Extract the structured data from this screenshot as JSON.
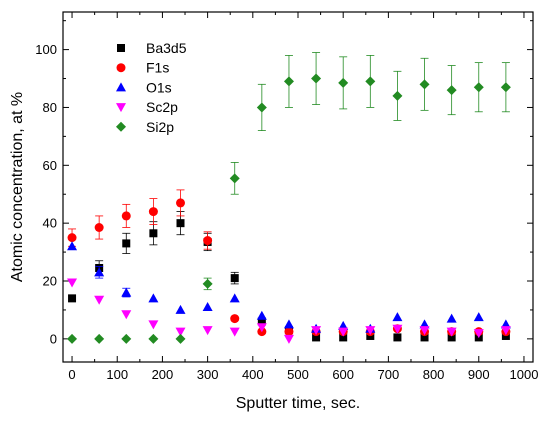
{
  "chart_data": {
    "type": "scatter",
    "xlabel": "Sputter time, sec.",
    "ylabel": "Atomic concentration, at %",
    "xlim": [
      -20,
      1020
    ],
    "ylim": [
      -8,
      113
    ],
    "xticks": [
      0,
      100,
      200,
      300,
      400,
      500,
      600,
      700,
      800,
      900,
      1000
    ],
    "yticks": [
      0,
      20,
      40,
      60,
      80,
      100
    ],
    "legend_position": "top-left",
    "series": [
      {
        "name": "Ba3d5",
        "marker": "square",
        "color": "#000000",
        "points": [
          {
            "x": 0,
            "y": 14,
            "err": 0
          },
          {
            "x": 60,
            "y": 24.5,
            "err": 2.5
          },
          {
            "x": 120,
            "y": 33,
            "err": 3.5
          },
          {
            "x": 180,
            "y": 36.5,
            "err": 4
          },
          {
            "x": 240,
            "y": 40,
            "err": 4
          },
          {
            "x": 300,
            "y": 33.5,
            "err": 3
          },
          {
            "x": 360,
            "y": 21,
            "err": 2
          },
          {
            "x": 420,
            "y": 6,
            "err": 0
          },
          {
            "x": 480,
            "y": 3,
            "err": 0
          },
          {
            "x": 540,
            "y": 0.5,
            "err": 0
          },
          {
            "x": 600,
            "y": 0.5,
            "err": 0
          },
          {
            "x": 660,
            "y": 1,
            "err": 0
          },
          {
            "x": 720,
            "y": 0.5,
            "err": 0
          },
          {
            "x": 780,
            "y": 0.5,
            "err": 0
          },
          {
            "x": 840,
            "y": 0.5,
            "err": 0
          },
          {
            "x": 900,
            "y": 0.5,
            "err": 0
          },
          {
            "x": 960,
            "y": 1,
            "err": 0
          }
        ]
      },
      {
        "name": "F1s",
        "marker": "circle",
        "color": "#ff0000",
        "points": [
          {
            "x": 0,
            "y": 35,
            "err": 3
          },
          {
            "x": 60,
            "y": 38.5,
            "err": 4
          },
          {
            "x": 120,
            "y": 42.5,
            "err": 4
          },
          {
            "x": 180,
            "y": 44,
            "err": 4.5
          },
          {
            "x": 240,
            "y": 47,
            "err": 4.5
          },
          {
            "x": 300,
            "y": 34,
            "err": 3
          },
          {
            "x": 360,
            "y": 7,
            "err": 0
          },
          {
            "x": 420,
            "y": 2.5,
            "err": 0
          },
          {
            "x": 480,
            "y": 2.5,
            "err": 0
          },
          {
            "x": 540,
            "y": 2.5,
            "err": 0
          },
          {
            "x": 600,
            "y": 2.5,
            "err": 0
          },
          {
            "x": 660,
            "y": 2.5,
            "err": 0
          },
          {
            "x": 720,
            "y": 3.5,
            "err": 0
          },
          {
            "x": 780,
            "y": 2.5,
            "err": 0
          },
          {
            "x": 840,
            "y": 2.5,
            "err": 0
          },
          {
            "x": 900,
            "y": 2.5,
            "err": 0
          },
          {
            "x": 960,
            "y": 2.5,
            "err": 0
          }
        ]
      },
      {
        "name": "O1s",
        "marker": "triangle-up",
        "color": "#0000ff",
        "points": [
          {
            "x": 0,
            "y": 32,
            "err": 0
          },
          {
            "x": 60,
            "y": 23,
            "err": 2
          },
          {
            "x": 120,
            "y": 16,
            "err": 1.5
          },
          {
            "x": 180,
            "y": 14,
            "err": 0
          },
          {
            "x": 240,
            "y": 10,
            "err": 0
          },
          {
            "x": 300,
            "y": 11,
            "err": 0
          },
          {
            "x": 360,
            "y": 14,
            "err": 0
          },
          {
            "x": 420,
            "y": 8,
            "err": 0
          },
          {
            "x": 480,
            "y": 5,
            "err": 0
          },
          {
            "x": 540,
            "y": 3.5,
            "err": 0
          },
          {
            "x": 600,
            "y": 4.5,
            "err": 0
          },
          {
            "x": 660,
            "y": 3.5,
            "err": 0
          },
          {
            "x": 720,
            "y": 7.5,
            "err": 0
          },
          {
            "x": 780,
            "y": 5,
            "err": 0
          },
          {
            "x": 840,
            "y": 7,
            "err": 0
          },
          {
            "x": 900,
            "y": 7.5,
            "err": 0
          },
          {
            "x": 960,
            "y": 5,
            "err": 0
          }
        ]
      },
      {
        "name": "Sc2p",
        "marker": "triangle-down",
        "color": "#ff00ff",
        "points": [
          {
            "x": 0,
            "y": 19.5,
            "err": 0
          },
          {
            "x": 60,
            "y": 13.5,
            "err": 0
          },
          {
            "x": 120,
            "y": 8.5,
            "err": 0
          },
          {
            "x": 180,
            "y": 5,
            "err": 0
          },
          {
            "x": 240,
            "y": 2.5,
            "err": 0
          },
          {
            "x": 300,
            "y": 3,
            "err": 0
          },
          {
            "x": 360,
            "y": 2.5,
            "err": 0
          },
          {
            "x": 420,
            "y": 4,
            "err": 0
          },
          {
            "x": 480,
            "y": 0,
            "err": 0
          },
          {
            "x": 540,
            "y": 3,
            "err": 0
          },
          {
            "x": 600,
            "y": 2.5,
            "err": 0
          },
          {
            "x": 660,
            "y": 3,
            "err": 0
          },
          {
            "x": 720,
            "y": 3.5,
            "err": 0
          },
          {
            "x": 780,
            "y": 3,
            "err": 0
          },
          {
            "x": 840,
            "y": 2.5,
            "err": 0
          },
          {
            "x": 900,
            "y": 2,
            "err": 0
          },
          {
            "x": 960,
            "y": 3,
            "err": 0
          }
        ]
      },
      {
        "name": "Si2p",
        "marker": "diamond",
        "color": "#228b22",
        "points": [
          {
            "x": 0,
            "y": 0,
            "err": 0
          },
          {
            "x": 60,
            "y": 0,
            "err": 0
          },
          {
            "x": 120,
            "y": 0,
            "err": 0
          },
          {
            "x": 180,
            "y": 0,
            "err": 0
          },
          {
            "x": 240,
            "y": 0,
            "err": 0
          },
          {
            "x": 300,
            "y": 19,
            "err": 2
          },
          {
            "x": 360,
            "y": 55.5,
            "err": 5.5
          },
          {
            "x": 420,
            "y": 80,
            "err": 8
          },
          {
            "x": 480,
            "y": 89,
            "err": 9
          },
          {
            "x": 540,
            "y": 90,
            "err": 9
          },
          {
            "x": 600,
            "y": 88.5,
            "err": 9
          },
          {
            "x": 660,
            "y": 89,
            "err": 9
          },
          {
            "x": 720,
            "y": 84,
            "err": 8.5
          },
          {
            "x": 780,
            "y": 88,
            "err": 9
          },
          {
            "x": 840,
            "y": 86,
            "err": 8.5
          },
          {
            "x": 900,
            "y": 87,
            "err": 8.5
          },
          {
            "x": 960,
            "y": 87,
            "err": 8.5
          }
        ]
      }
    ]
  }
}
